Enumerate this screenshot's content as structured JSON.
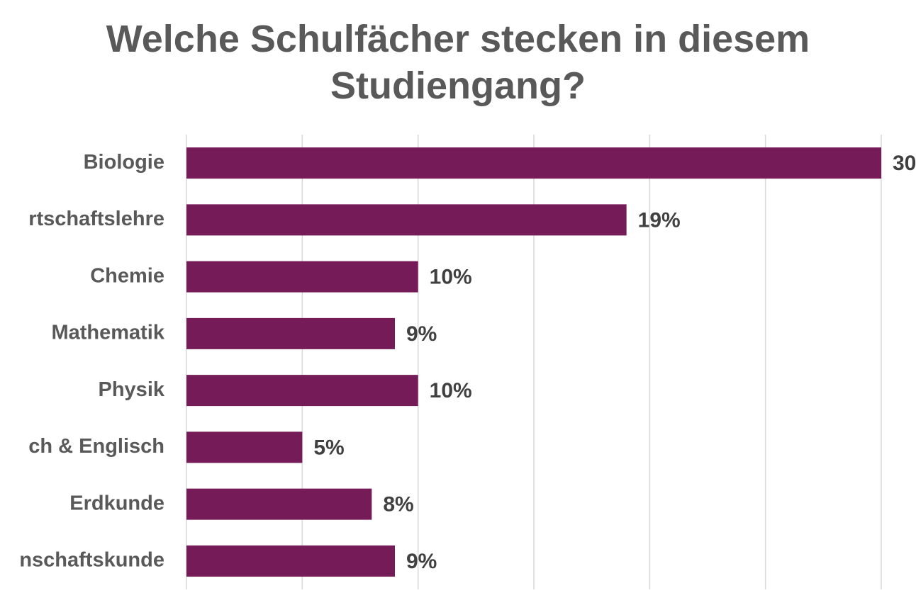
{
  "chart_data": {
    "type": "bar",
    "orientation": "horizontal",
    "title": "Welche Schulfächer stecken in diesem Studiengang?",
    "categories": [
      "Biologie",
      "rtschaftslehre",
      "Chemie",
      "Mathematik",
      "Physik",
      "ch & Englisch",
      "Erdkunde",
      "nschaftskunde"
    ],
    "values": [
      30,
      19,
      10,
      9,
      10,
      5,
      8,
      9
    ],
    "value_labels": [
      "30",
      "19%",
      "10%",
      "9%",
      "10%",
      "5%",
      "8%",
      "9%"
    ],
    "color": "#741b58",
    "xlim": [
      0,
      30
    ],
    "xticks": [
      0,
      5,
      10,
      15,
      20,
      25,
      30
    ],
    "grid": true
  }
}
